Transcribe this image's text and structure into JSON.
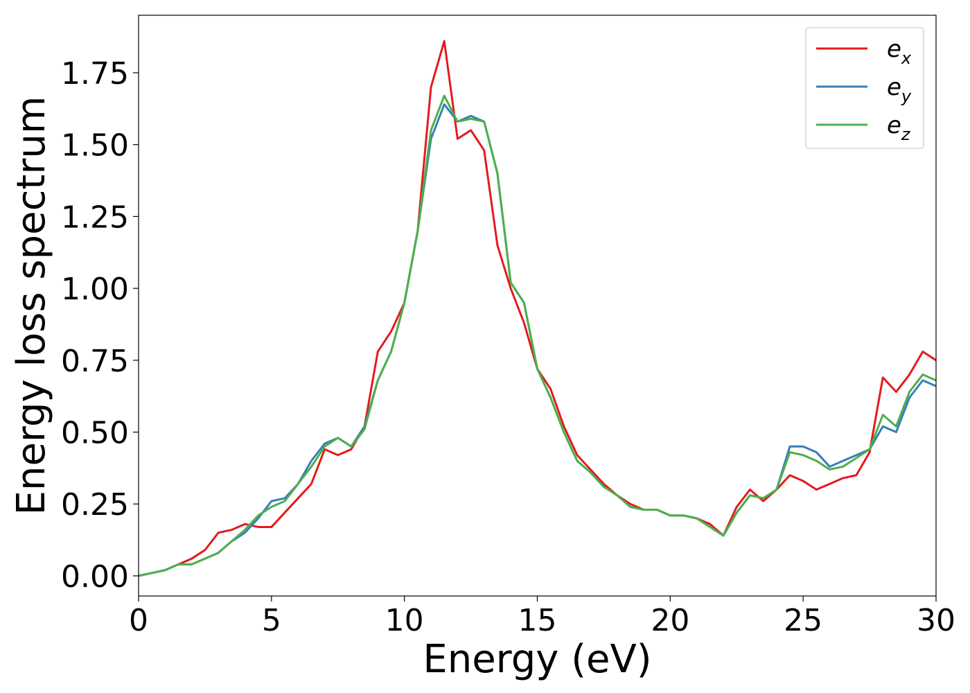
{
  "chart_data": {
    "type": "line",
    "title": "",
    "xlabel": "Energy (eV)",
    "ylabel": "Energy loss spectrum",
    "xlim": [
      0,
      30
    ],
    "ylim": [
      -0.07,
      1.95
    ],
    "xticks": [
      0,
      5,
      10,
      15,
      20,
      25,
      30
    ],
    "yticks": [
      0.0,
      0.25,
      0.5,
      0.75,
      1.0,
      1.25,
      1.5,
      1.75
    ],
    "xtick_labels": [
      "0",
      "5",
      "10",
      "15",
      "20",
      "25",
      "30"
    ],
    "ytick_labels": [
      "0.00",
      "0.25",
      "0.50",
      "0.75",
      "1.00",
      "1.25",
      "1.50",
      "1.75"
    ],
    "grid": false,
    "legend_position": "top-right",
    "series": [
      {
        "name": "e_x",
        "legend_base": "e",
        "legend_sub": "x",
        "color": "#e41a1c",
        "x": [
          0,
          0.5,
          1,
          1.5,
          2,
          2.5,
          3,
          3.5,
          4,
          4.5,
          5,
          5.5,
          6,
          6.5,
          7,
          7.5,
          8,
          8.5,
          9,
          9.5,
          10,
          10.5,
          11,
          11.5,
          12,
          12.5,
          13,
          13.5,
          14,
          14.5,
          15,
          15.5,
          16,
          16.5,
          17,
          17.5,
          18,
          18.5,
          19,
          19.5,
          20,
          20.5,
          21,
          21.5,
          22,
          22.5,
          23,
          23.5,
          24,
          24.5,
          25,
          25.5,
          26,
          26.5,
          27,
          27.5,
          28,
          28.5,
          29,
          29.5,
          30
        ],
        "y": [
          0.0,
          0.01,
          0.02,
          0.04,
          0.06,
          0.09,
          0.15,
          0.16,
          0.18,
          0.17,
          0.17,
          0.22,
          0.27,
          0.32,
          0.44,
          0.42,
          0.44,
          0.52,
          0.78,
          0.85,
          0.95,
          1.2,
          1.7,
          1.86,
          1.52,
          1.55,
          1.48,
          1.15,
          1.0,
          0.88,
          0.72,
          0.65,
          0.52,
          0.42,
          0.37,
          0.32,
          0.28,
          0.25,
          0.23,
          0.23,
          0.21,
          0.21,
          0.2,
          0.18,
          0.14,
          0.24,
          0.3,
          0.26,
          0.3,
          0.35,
          0.33,
          0.3,
          0.32,
          0.34,
          0.35,
          0.43,
          0.69,
          0.64,
          0.7,
          0.78,
          0.75
        ]
      },
      {
        "name": "e_y",
        "legend_base": "e",
        "legend_sub": "y",
        "color": "#377eb8",
        "x": [
          0,
          0.5,
          1,
          1.5,
          2,
          2.5,
          3,
          3.5,
          4,
          4.5,
          5,
          5.5,
          6,
          6.5,
          7,
          7.5,
          8,
          8.5,
          9,
          9.5,
          10,
          10.5,
          11,
          11.5,
          12,
          12.5,
          13,
          13.5,
          14,
          14.5,
          15,
          15.5,
          16,
          16.5,
          17,
          17.5,
          18,
          18.5,
          19,
          19.5,
          20,
          20.5,
          21,
          21.5,
          22,
          22.5,
          23,
          23.5,
          24,
          24.5,
          25,
          25.5,
          26,
          26.5,
          27,
          27.5,
          28,
          28.5,
          29,
          29.5,
          30
        ],
        "y": [
          0.0,
          0.01,
          0.02,
          0.04,
          0.04,
          0.06,
          0.08,
          0.12,
          0.15,
          0.2,
          0.26,
          0.27,
          0.32,
          0.4,
          0.46,
          0.48,
          0.45,
          0.52,
          0.68,
          0.78,
          0.95,
          1.2,
          1.52,
          1.64,
          1.58,
          1.6,
          1.58,
          1.4,
          1.02,
          0.95,
          0.72,
          0.62,
          0.5,
          0.4,
          0.36,
          0.31,
          0.28,
          0.24,
          0.23,
          0.23,
          0.21,
          0.21,
          0.2,
          0.17,
          0.14,
          0.22,
          0.28,
          0.27,
          0.3,
          0.45,
          0.45,
          0.43,
          0.38,
          0.4,
          0.42,
          0.44,
          0.52,
          0.5,
          0.62,
          0.68,
          0.66
        ]
      },
      {
        "name": "e_z",
        "legend_base": "e",
        "legend_sub": "z",
        "color": "#4daf4a",
        "x": [
          0,
          0.5,
          1,
          1.5,
          2,
          2.5,
          3,
          3.5,
          4,
          4.5,
          5,
          5.5,
          6,
          6.5,
          7,
          7.5,
          8,
          8.5,
          9,
          9.5,
          10,
          10.5,
          11,
          11.5,
          12,
          12.5,
          13,
          13.5,
          14,
          14.5,
          15,
          15.5,
          16,
          16.5,
          17,
          17.5,
          18,
          18.5,
          19,
          19.5,
          20,
          20.5,
          21,
          21.5,
          22,
          22.5,
          23,
          23.5,
          24,
          24.5,
          25,
          25.5,
          26,
          26.5,
          27,
          27.5,
          28,
          28.5,
          29,
          29.5,
          30
        ],
        "y": [
          0.0,
          0.01,
          0.02,
          0.04,
          0.04,
          0.06,
          0.08,
          0.12,
          0.16,
          0.21,
          0.24,
          0.26,
          0.32,
          0.38,
          0.45,
          0.48,
          0.45,
          0.51,
          0.68,
          0.78,
          0.95,
          1.2,
          1.55,
          1.67,
          1.58,
          1.59,
          1.58,
          1.4,
          1.02,
          0.95,
          0.72,
          0.62,
          0.5,
          0.4,
          0.36,
          0.31,
          0.28,
          0.24,
          0.23,
          0.23,
          0.21,
          0.21,
          0.2,
          0.17,
          0.14,
          0.22,
          0.28,
          0.27,
          0.3,
          0.43,
          0.42,
          0.4,
          0.37,
          0.38,
          0.41,
          0.44,
          0.56,
          0.52,
          0.64,
          0.7,
          0.68
        ]
      }
    ]
  }
}
